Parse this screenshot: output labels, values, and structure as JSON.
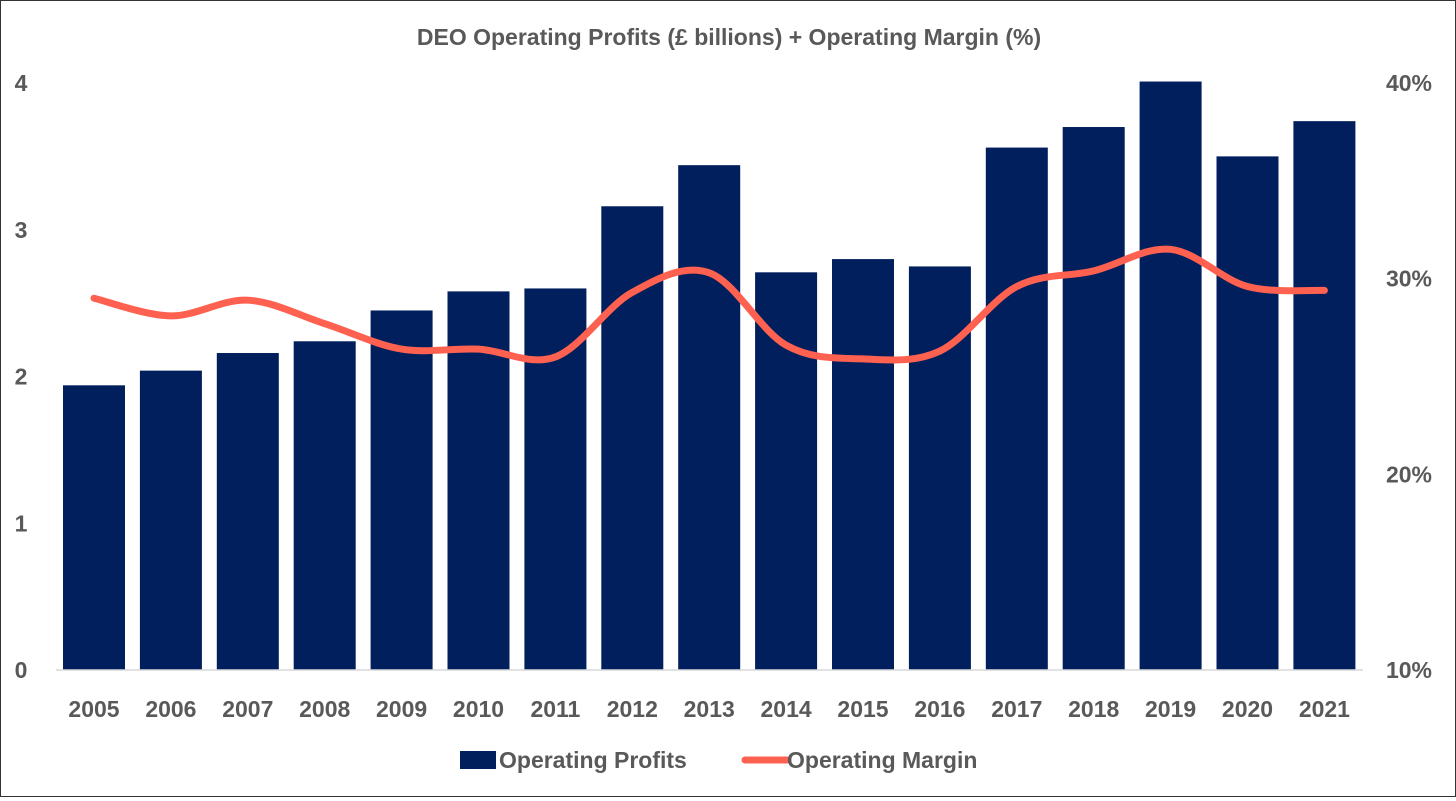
{
  "chart_data": {
    "type": "bar+line",
    "title": "DEO Operating Profits (£ billions) + Operating Margin (%)",
    "categories": [
      "2005",
      "2006",
      "2007",
      "2008",
      "2009",
      "2010",
      "2011",
      "2012",
      "2013",
      "2014",
      "2015",
      "2016",
      "2017",
      "2018",
      "2019",
      "2020",
      "2021"
    ],
    "series": [
      {
        "name": "Operating Profits",
        "type": "bar",
        "axis": "left",
        "color": "#001f5c",
        "values": [
          1.94,
          2.04,
          2.16,
          2.24,
          2.45,
          2.58,
          2.6,
          3.16,
          3.44,
          2.71,
          2.8,
          2.75,
          3.56,
          3.7,
          4.01,
          3.5,
          3.74
        ]
      },
      {
        "name": "Operating Margin",
        "type": "line",
        "axis": "right",
        "color": "#ff6150",
        "values": [
          29.0,
          28.1,
          28.9,
          27.7,
          26.4,
          26.4,
          26.0,
          29.3,
          30.3,
          26.6,
          25.9,
          26.3,
          29.6,
          30.4,
          31.5,
          29.6,
          29.4
        ]
      }
    ],
    "y_left": {
      "ylim": [
        0,
        4
      ],
      "ticks": [
        "0",
        "1",
        "2",
        "3",
        "4"
      ]
    },
    "y_right": {
      "ylim": [
        10,
        40
      ],
      "ticks": [
        "10%",
        "20%",
        "30%",
        "40%"
      ]
    },
    "grid": false,
    "legend": "bottom-center"
  }
}
